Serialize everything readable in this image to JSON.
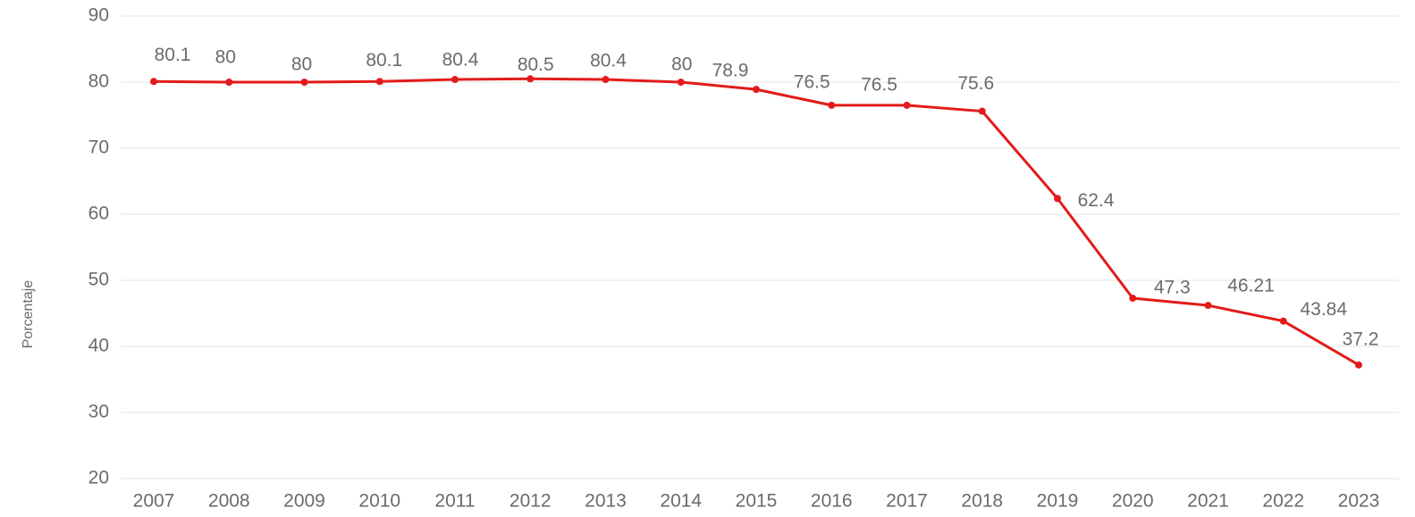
{
  "chart_data": {
    "type": "line",
    "y_label": "Porcentaje",
    "categories": [
      "2007",
      "2008",
      "2009",
      "2010",
      "2011",
      "2012",
      "2013",
      "2014",
      "2015",
      "2016",
      "2017",
      "2018",
      "2019",
      "2020",
      "2021",
      "2022",
      "2023"
    ],
    "series": [
      {
        "name": "Porcentaje",
        "color": "#e31b1b",
        "values": [
          80.1,
          80,
          80,
          80.1,
          80.4,
          80.5,
          80.4,
          80,
          78.9,
          76.5,
          76.5,
          75.6,
          62.4,
          47.3,
          46.21,
          43.84,
          37.2
        ]
      }
    ],
    "ylim": [
      20,
      90
    ],
    "yticks": [
      20,
      30,
      40,
      50,
      60,
      70,
      80,
      90
    ],
    "grid": true
  }
}
